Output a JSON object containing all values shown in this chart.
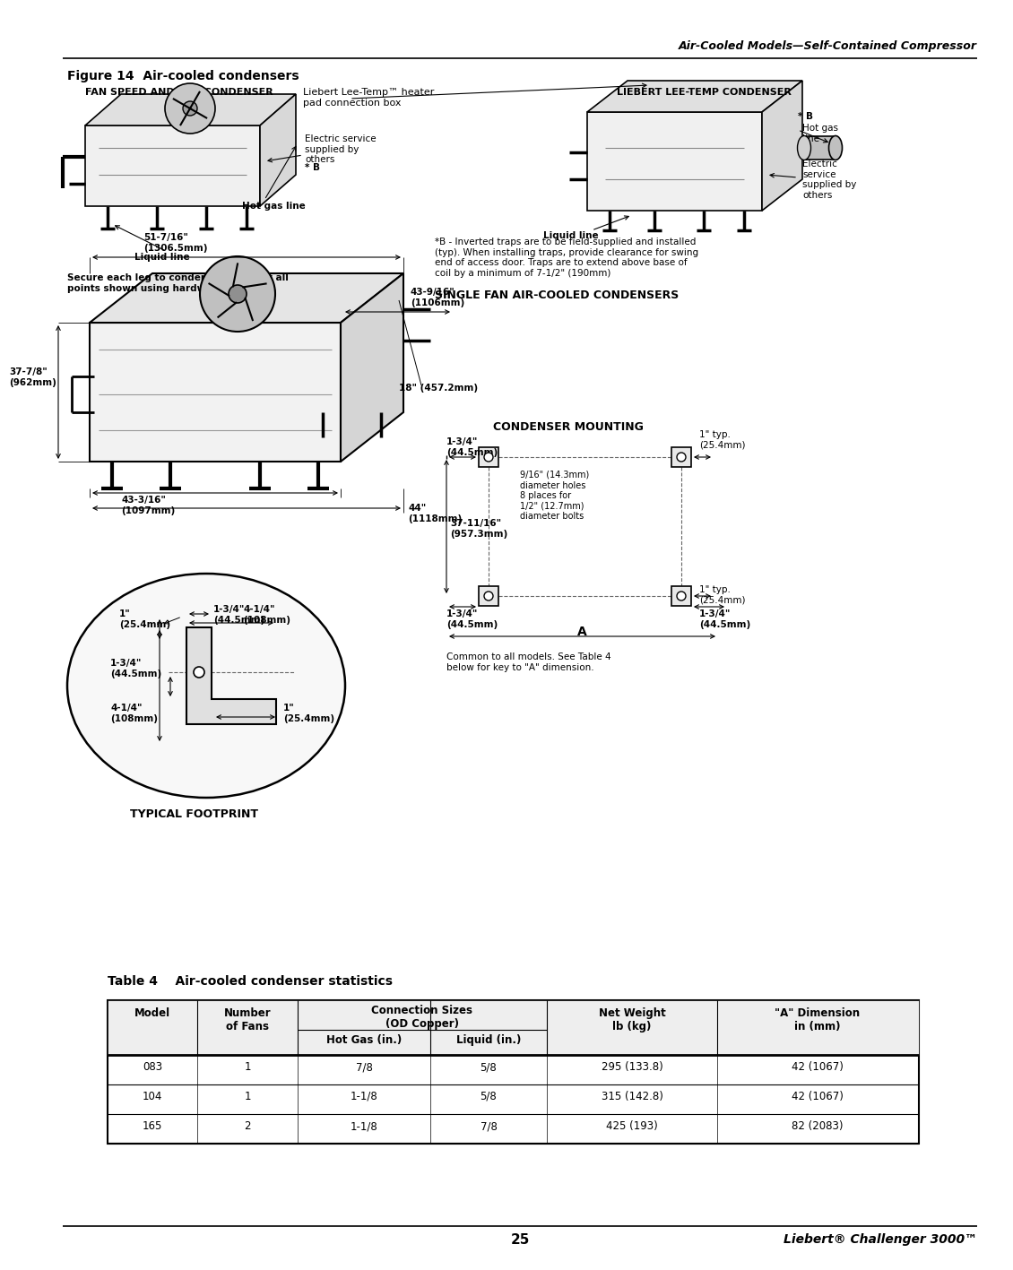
{
  "page_title_right": "Air-Cooled Models—Self-Contained Compressor",
  "figure_title": "Figure 14  Air-cooled condensers",
  "fan_speed_label": "FAN SPEED AND VFD CONDENSER",
  "liebert_heater_label": "Liebert Lee-Temp™ heater\npad connection box",
  "liebert_condenser_label": "LIEBERT LEE-TEMP CONDENSER",
  "electric_service_label": "Electric service\nsupplied by\nothers",
  "star_b_left": "* B",
  "hot_gas_line_label": "Hot gas line",
  "liquid_line_label": "Liquid line",
  "liquid_line2_label": "Liquid line",
  "hot_gas_line2_label": "Hot gas\nline",
  "electric_service2_label": "Electric\nservice\nsupplied by\nothers",
  "star_b_right": "* B",
  "star_b_note": "*B - Inverted traps are to be field-supplied and installed\n(typ). When installing traps, provide clearance for swing\nend of access door. Traps are to extend above base of\ncoil by a minimum of 7-1/2\" (190mm)",
  "secure_note": "Secure each leg to condenser frame at all\npoints shown using hardware provided.",
  "single_fan_label": "SINGLE FAN AIR-COOLED CONDENSERS",
  "dim_51_7_16": "51-7/16\"\n(1306.5mm)",
  "dim_43_9_16": "43-9/16\"\n(1106mm)",
  "dim_37_7_8": "37-7/8\"\n(962mm)",
  "dim_18": "18\" (457.2mm)",
  "dim_43_3_16": "43-3/16\"\n(1097mm)",
  "dim_44": "44\"\n(1118mm)",
  "condenser_mounting_label": "CONDENSER MOUNTING",
  "dim_1_3_4_top": "1-3/4\"\n(44.5mm)",
  "dim_37_11_16": "37-11/16\"\n(957.3mm)",
  "dim_9_16_note": "9/16\" (14.3mm)\ndiameter holes\n8 places for\n1/2\" (12.7mm)\ndiameter bolts",
  "dim_1_typ_right_top": "1\" typ.\n(25.4mm)",
  "dim_1_typ_right_bot": "1\" typ.\n(25.4mm)",
  "dim_1_3_4_bot_left": "1-3/4\"\n(44.5mm)",
  "dim_1_3_4_bot_right": "1-3/4\"\n(44.5mm)",
  "dim_A_label": "A",
  "common_note": "Common to all models. See Table 4\nbelow for key to \"A\" dimension.",
  "fp_1_top": "1\"\n(25.4mm)",
  "fp_1_3_4_top": "1-3/4\"\n(44.5mm)",
  "fp_4_1_4_top": "4-1/4\"\n(108mm)",
  "fp_1_3_4_left": "1-3/4\"\n(44.5mm)",
  "fp_4_1_4_left": "4-1/4\"\n(108mm)",
  "fp_1_right": "1\"\n(25.4mm)",
  "typical_footprint_label": "TYPICAL FOOTPRINT",
  "table_title": "Table 4    Air-cooled condenser statistics",
  "table_data": [
    [
      "083",
      "1",
      "7/8",
      "5/8",
      "295 (133.8)",
      "42 (1067)"
    ],
    [
      "104",
      "1",
      "1-1/8",
      "5/8",
      "315 (142.8)",
      "42 (1067)"
    ],
    [
      "165",
      "2",
      "1-1/8",
      "7/8",
      "425 (193)",
      "82 (2083)"
    ]
  ],
  "page_number": "25",
  "page_footer_right": "Liebert® Challenger 3000™"
}
